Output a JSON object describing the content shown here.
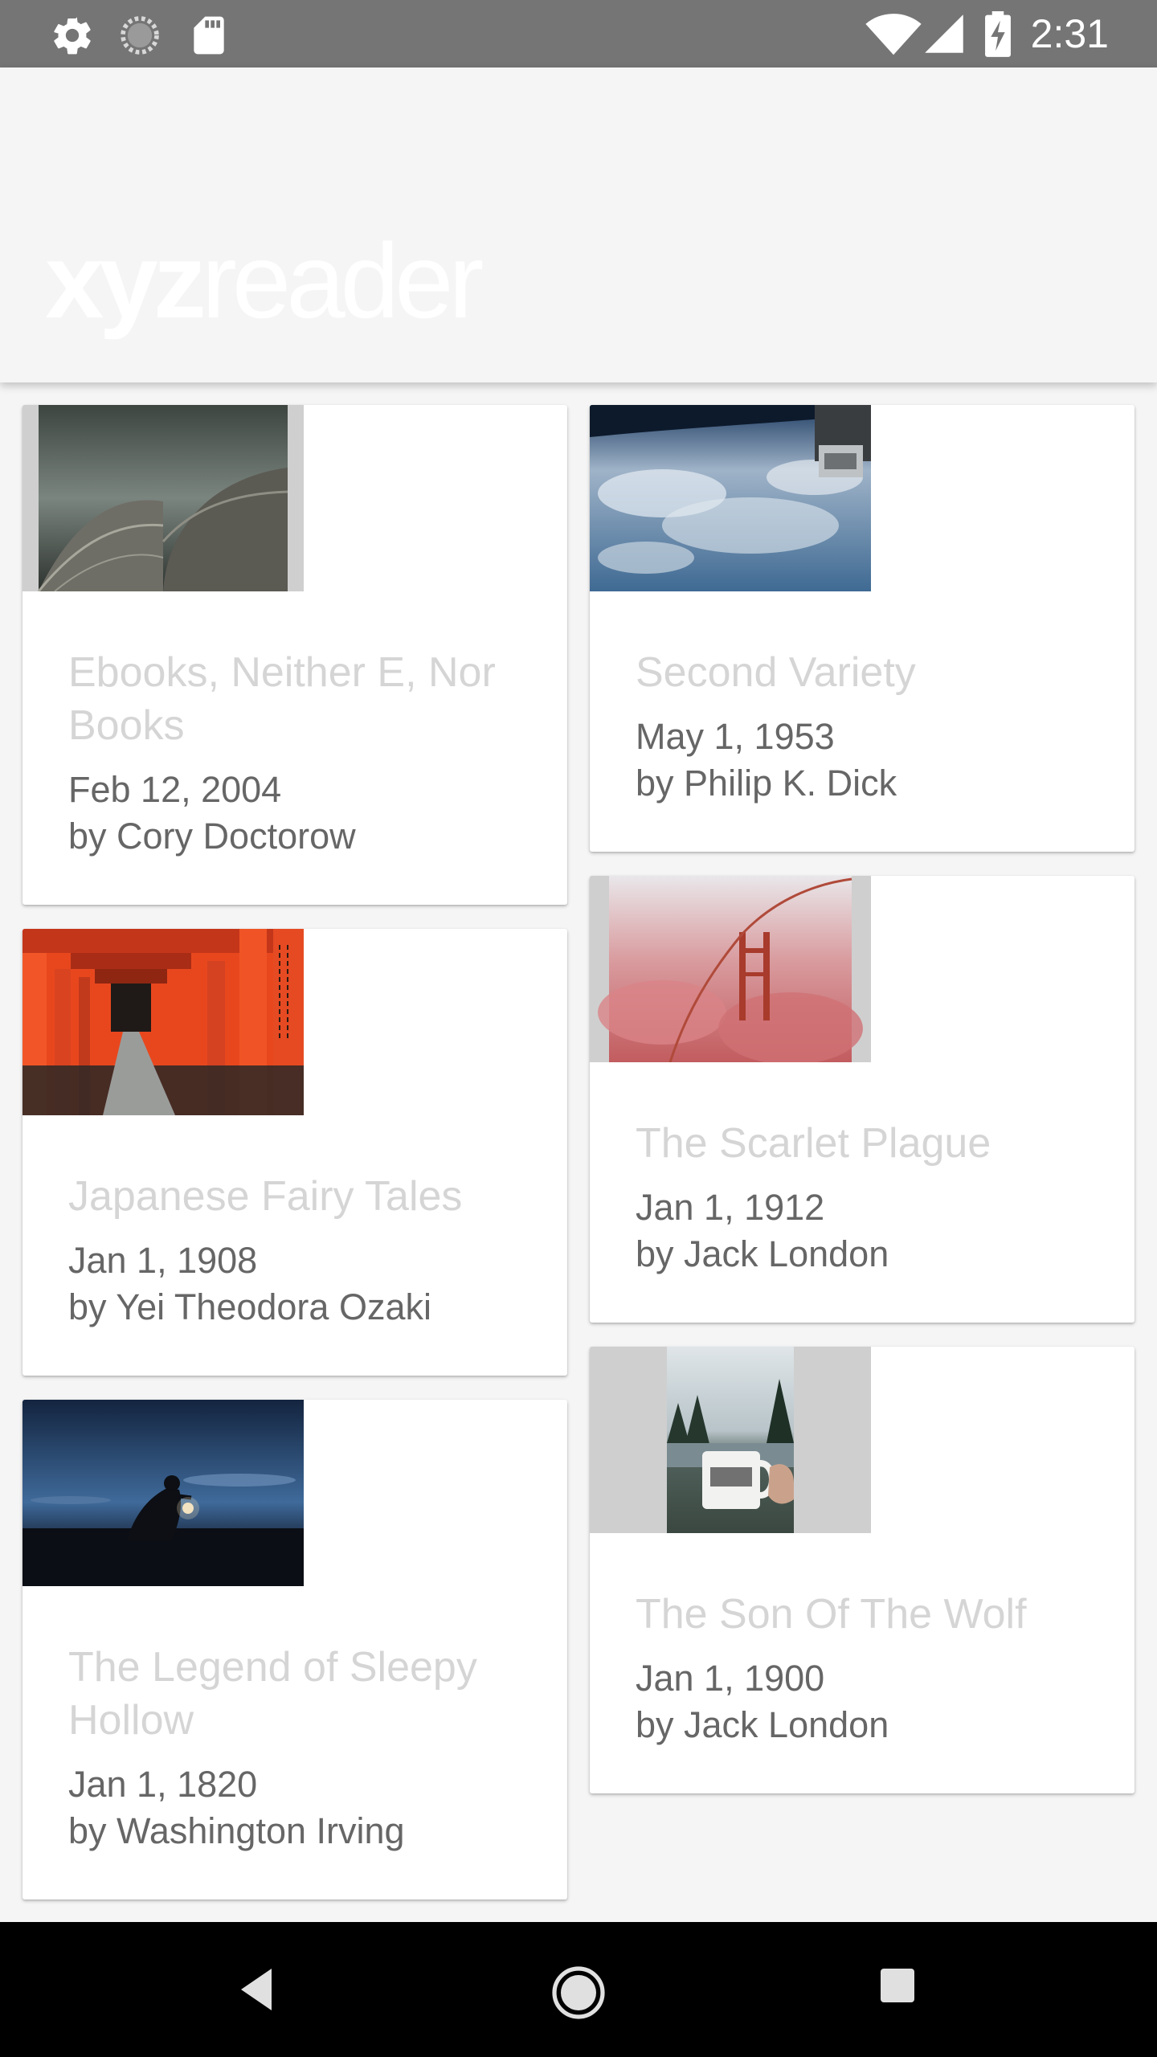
{
  "status_bar": {
    "time": "2:31",
    "icons": [
      "settings-icon",
      "sync-icon",
      "sd-card-icon",
      "wifi-icon",
      "signal-icon",
      "battery-charging-icon"
    ]
  },
  "app_bar": {
    "logo_bold": "xyz",
    "logo_light": "reader"
  },
  "articles": [
    {
      "title": "Ebooks, Neither E, Nor Books",
      "date": "Feb 12, 2004",
      "author": "by Cory Doctorow",
      "image": "architecture-photo"
    },
    {
      "title": "Second Variety",
      "date": "May 1, 1953",
      "author": "by Philip K. Dick",
      "image": "earth-from-space-photo"
    },
    {
      "title": "Japanese Fairy Tales",
      "date": "Jan 1, 1908",
      "author": "by Yei Theodora Ozaki",
      "image": "torii-gates-photo"
    },
    {
      "title": "The Scarlet Plague",
      "date": "Jan 1, 1912",
      "author": "by Jack London",
      "image": "golden-gate-fog-photo"
    },
    {
      "title": "The Legend of Sleepy Hollow",
      "date": "Jan 1, 1820",
      "author": "by Washington Irving",
      "image": "lantern-night-photo"
    },
    {
      "title": "The Son Of The Wolf",
      "date": "Jan 1, 1900",
      "author": "by Jack London",
      "image": "adventure-mug-photo"
    }
  ],
  "nav_bar": {
    "buttons": [
      "back-button",
      "home-button",
      "recents-button"
    ]
  },
  "colors": {
    "status_bar": "#757575",
    "background": "#f5f5f5",
    "card": "#ffffff",
    "title_text": "#d5d5d5",
    "meta_text": "#666666"
  }
}
